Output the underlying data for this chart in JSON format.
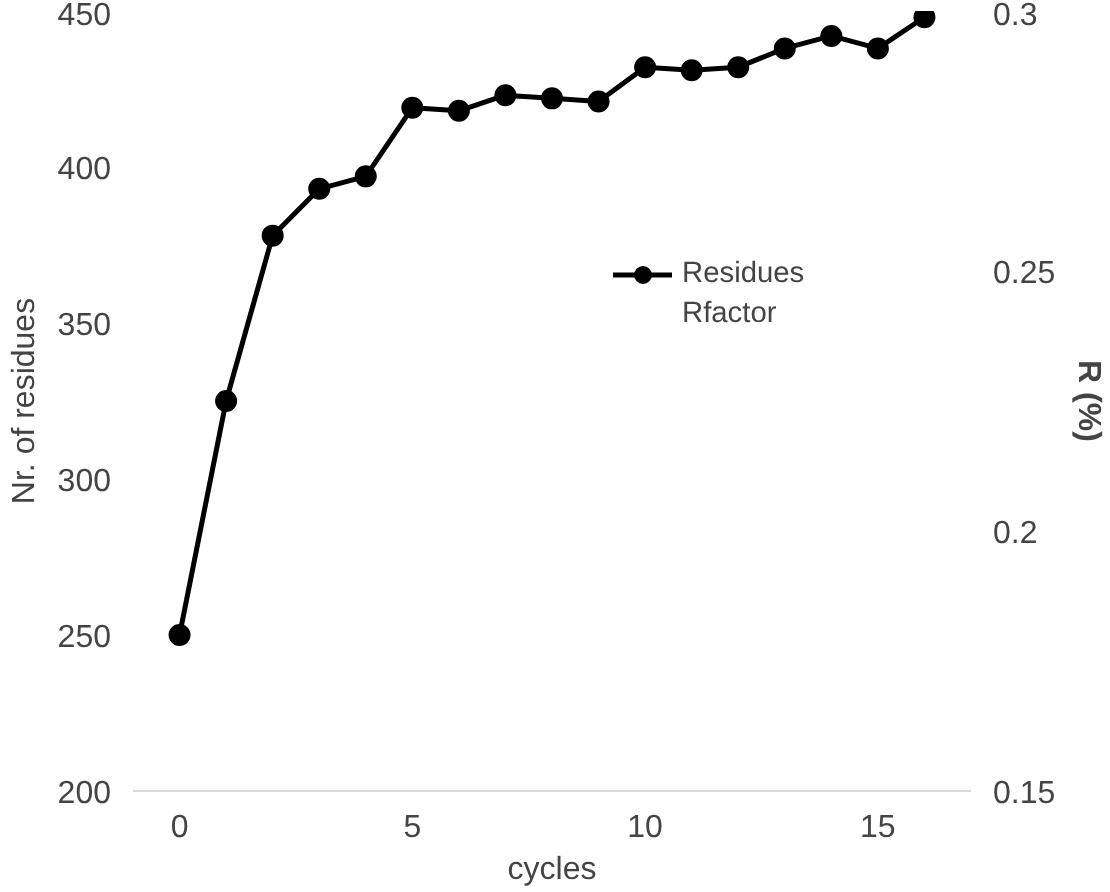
{
  "chart_data": {
    "type": "line",
    "xlabel": "cycles",
    "ylabel": "Nr. of residues",
    "y2label": "R (%)",
    "x": [
      0,
      1,
      2,
      3,
      4,
      5,
      6,
      7,
      8,
      9,
      10,
      11,
      12,
      13,
      14,
      15,
      16
    ],
    "series": [
      {
        "name": "Residues",
        "color": "#000000",
        "marker": "circle",
        "values": [
          250,
          325,
          378,
          393,
          397,
          419,
          418,
          423,
          422,
          421,
          432,
          431,
          432,
          438,
          442,
          438,
          448
        ]
      },
      {
        "name": "Rfactor",
        "marker": "none",
        "values": [
          null,
          null,
          null,
          null,
          null,
          null,
          null,
          null,
          null,
          null,
          null,
          null,
          null,
          null,
          null,
          null,
          null
        ]
      }
    ],
    "xlim": [
      -1,
      17
    ],
    "xticks": [
      0,
      5,
      10,
      15
    ],
    "ylim": [
      200,
      450
    ],
    "yticks": [
      200,
      250,
      300,
      350,
      400,
      450
    ],
    "y2lim": [
      0.15,
      0.3
    ],
    "y2ticks": [
      0.15,
      0.2,
      0.25,
      0.3
    ],
    "grid": false,
    "legend": "right"
  }
}
